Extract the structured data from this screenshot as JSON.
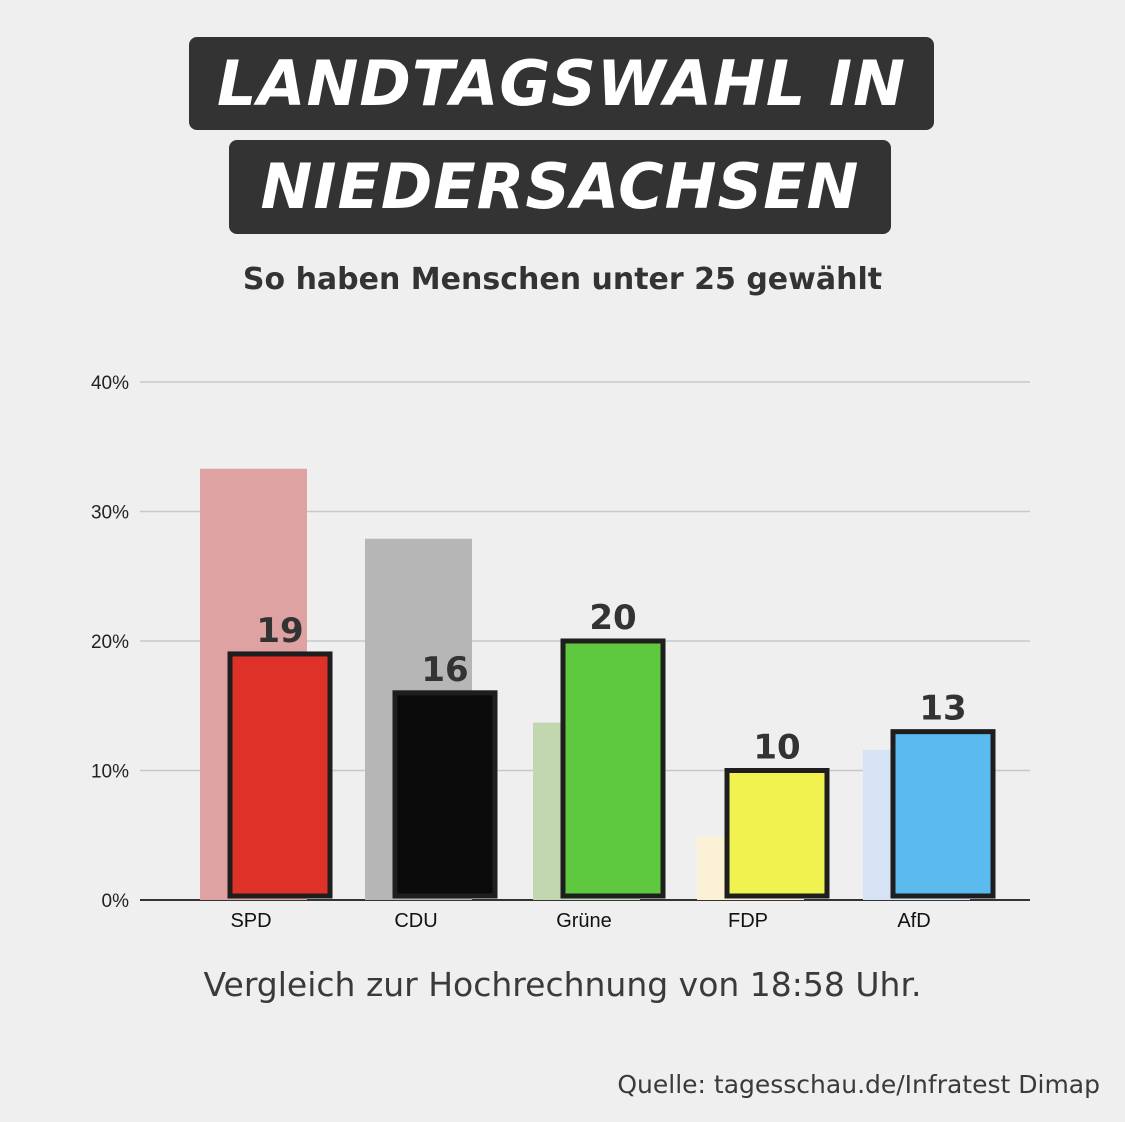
{
  "title_lines": [
    "LANDTAGSWAHL IN",
    "NIEDERSACHSEN"
  ],
  "subtitle": "So haben Menschen unter 25 gewählt",
  "footnote": "Vergleich zur Hochrechnung von 18:58 Uhr.",
  "source": "Quelle: tagesschau.de/Infratest Dimap",
  "colors": {
    "background": "#f0efef",
    "title_box": "#333333",
    "grid": "#c8c8c8",
    "axis": "#333333",
    "bar_border": "#1e1e1e"
  },
  "chart_data": {
    "type": "bar",
    "categories": [
      "SPD",
      "CDU",
      "Grüne",
      "FDP",
      "AfD"
    ],
    "y_ticks": [
      "0%",
      "10%",
      "20%",
      "30%",
      "40%"
    ],
    "ylim": [
      0,
      40
    ],
    "grid": true,
    "series": [
      {
        "values": [
          33.3,
          27.9,
          13.7,
          4.9,
          11.6
        ],
        "colors": [
          "#dfa2a2",
          "#b6b6b6",
          "#c2d6b0",
          "#faf1d6",
          "#d5e3f5"
        ]
      },
      {
        "values": [
          19,
          16,
          20,
          10,
          13
        ],
        "data_labels": [
          "19",
          "16",
          "20",
          "10",
          "13"
        ],
        "colors": [
          "#de3127",
          "#0a0a0a",
          "#5ec93e",
          "#f0f250",
          "#5bbbef"
        ]
      }
    ]
  }
}
